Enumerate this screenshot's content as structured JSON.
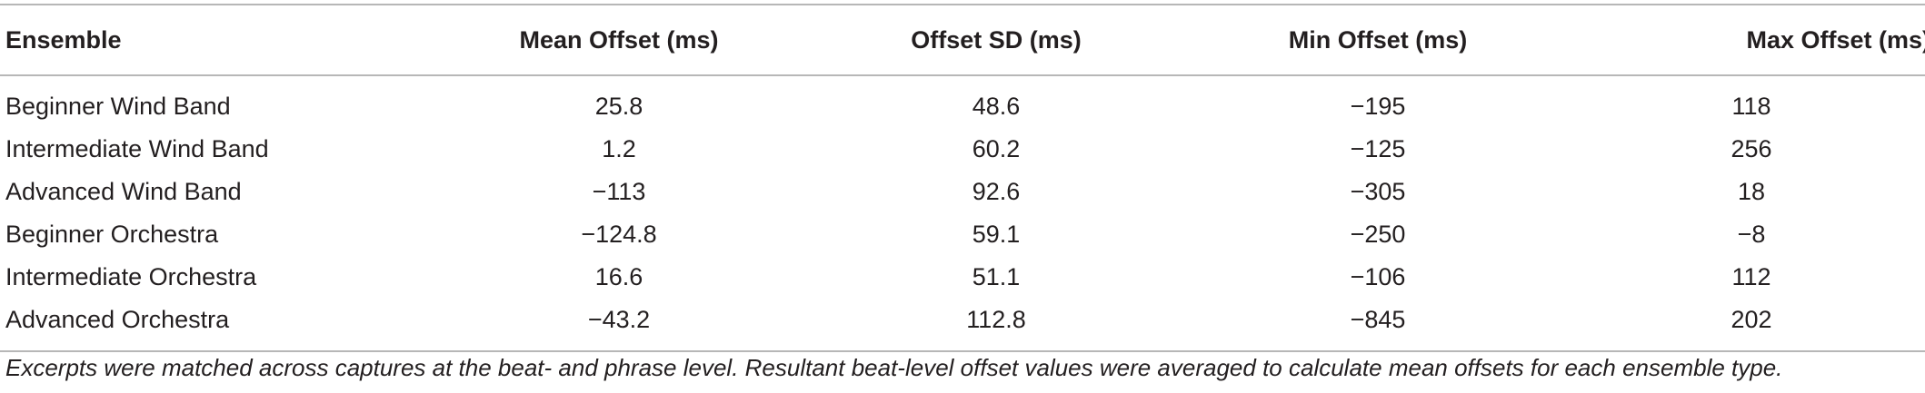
{
  "table": {
    "headers": [
      "Ensemble",
      "Mean Offset (ms)",
      "Offset SD (ms)",
      "Min Offset (ms)",
      "Max Offset (ms)"
    ],
    "rows": [
      [
        "Beginner Wind Band",
        "25.8",
        "48.6",
        "−195",
        "118"
      ],
      [
        "Intermediate Wind Band",
        "1.2",
        "60.2",
        "−125",
        "256"
      ],
      [
        "Advanced Wind Band",
        "−113",
        "92.6",
        "−305",
        "18"
      ],
      [
        "Beginner Orchestra",
        "−124.8",
        "59.1",
        "−250",
        "−8"
      ],
      [
        "Intermediate Orchestra",
        "16.6",
        "51.1",
        "−106",
        "112"
      ],
      [
        "Advanced Orchestra",
        "−43.2",
        "112.8",
        "−845",
        "202"
      ]
    ]
  },
  "footnote": "Excerpts were matched across captures at the beat- and phrase level. Resultant beat-level offset values were averaged to calculate mean offsets for each ensemble type."
}
